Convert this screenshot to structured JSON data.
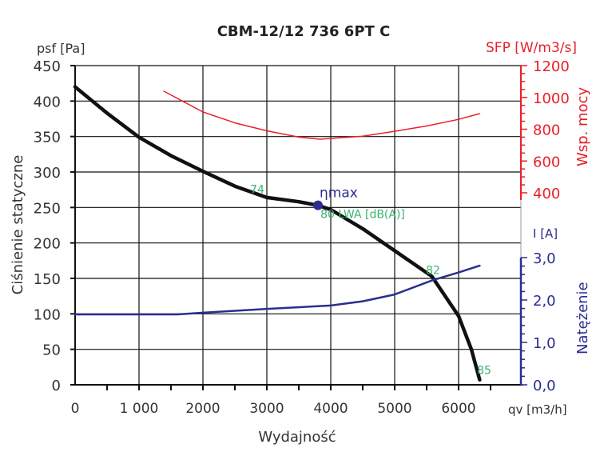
{
  "chart_data": {
    "type": "line",
    "title": "CBM-12/12 736 6PT C",
    "xlabel": "Wydajność",
    "xunit": "qv [m3/h]",
    "xlim": [
      0,
      7000
    ],
    "xticks": [
      "0",
      "1 000",
      "2000",
      "3000",
      "4000",
      "5000",
      "6000"
    ],
    "xtick_values": [
      0,
      1000,
      2000,
      3000,
      4000,
      5000,
      6000
    ],
    "grid": true,
    "left_axis": {
      "label": "Ciśnienie statyczne",
      "unit": "psf [Pa]",
      "ylim": [
        0,
        450
      ],
      "ticks": [
        0,
        50,
        100,
        150,
        200,
        250,
        300,
        350,
        400,
        450
      ],
      "color": "#222222"
    },
    "sfp_axis": {
      "label": "Wsp. mocy",
      "unit": "SFP [W/m3/s]",
      "ylim": [
        400,
        1200
      ],
      "ticks": [
        400,
        600,
        800,
        1000,
        1200
      ],
      "color": "#e8202a"
    },
    "current_axis": {
      "label": "Natężenie",
      "unit": "I [A]",
      "ylim": [
        0,
        3
      ],
      "ticks": [
        "0,0",
        "1,0",
        "2,0",
        "3,0"
      ],
      "tick_values": [
        0,
        1,
        2,
        3
      ],
      "color": "#2b2e8f"
    },
    "series": [
      {
        "name": "Pressure",
        "axis": "left",
        "color": "#111111",
        "x": [
          0,
          500,
          1000,
          1500,
          2000,
          2500,
          3000,
          3500,
          3800,
          4000,
          4500,
          5000,
          5580,
          6000,
          6200,
          6330
        ],
        "y": [
          420,
          383,
          349,
          323,
          301,
          280,
          264,
          258,
          253,
          247,
          220,
          189,
          153,
          97,
          50,
          7
        ]
      },
      {
        "name": "SFP",
        "axis": "sfp",
        "color": "#e8202a",
        "x": [
          1390,
          2000,
          2500,
          3000,
          3500,
          3830,
          4500,
          5000,
          5500,
          6000,
          6330
        ],
        "y": [
          1039,
          908,
          840,
          790,
          750,
          737,
          756,
          787,
          820,
          862,
          898
        ]
      },
      {
        "name": "Current",
        "axis": "current",
        "color": "#2b2e8f",
        "x": [
          0,
          1000,
          1600,
          2000,
          3000,
          4000,
          4500,
          5000,
          5600,
          6000,
          6330
        ],
        "y": [
          1.66,
          1.66,
          1.66,
          1.7,
          1.79,
          1.87,
          1.97,
          2.13,
          2.47,
          2.65,
          2.81
        ]
      }
    ],
    "annotations": [
      {
        "text": "74",
        "x": 2850,
        "y": 270,
        "color": "#3cb371"
      },
      {
        "text": "80 LWA [dB(A)]",
        "x": 4500,
        "y": 235,
        "color": "#3cb371"
      },
      {
        "text": "82",
        "x": 5600,
        "y": 156,
        "color": "#3cb371"
      },
      {
        "text": "85",
        "x": 6400,
        "y": 15,
        "color": "#3cb371"
      },
      {
        "text": "ηmax",
        "x": 3800,
        "y": 253,
        "color": "#2b2e8f"
      }
    ]
  }
}
